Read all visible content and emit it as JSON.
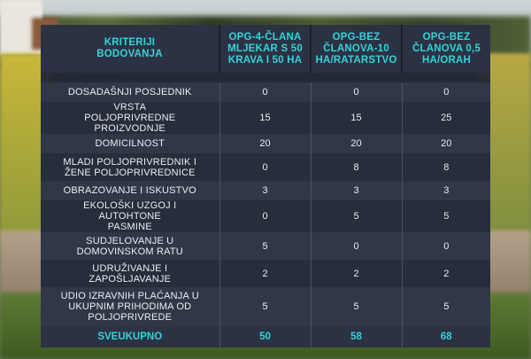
{
  "header": {
    "criteria_label": "KRITERIJI BODOVANJA",
    "columns": [
      "OPG-4-ČLANA MLJEKAR S 50 KRAVA I 50 HA",
      "OPG-BEZ ČLANOVA-10 HA/RATARSTVO",
      "OPG-BEZ ČLANOVA 0,5 HA/ORAH"
    ]
  },
  "rows": [
    {
      "criterion": "DOSADAŠNJI POSJEDNIK",
      "values": [
        "0",
        "0",
        "0"
      ]
    },
    {
      "criterion": "VRSTA POLJOPRIVREDNE PROIZVODNJE",
      "values": [
        "15",
        "15",
        "25"
      ]
    },
    {
      "criterion": "DOMICILNOST",
      "values": [
        "20",
        "20",
        "20"
      ]
    },
    {
      "criterion": "MLADI POLJOPRIVREDNIK I ŽENE POLJOPRIVREDNICE",
      "values": [
        "0",
        "8",
        "8"
      ]
    },
    {
      "criterion": "OBRAZOVANJE I ISKUSTVO",
      "values": [
        "3",
        "3",
        "3"
      ]
    },
    {
      "criterion": "EKOLOŠKI UZGOJ I AUTOHTONE PASMINE",
      "values": [
        "0",
        "5",
        "5"
      ]
    },
    {
      "criterion": "SUDJELOVANJE U DOMOVINSKOM RATU",
      "values": [
        "5",
        "0",
        "0"
      ]
    },
    {
      "criterion": "UDRUŽIVANJE I ZAPOŠLJAVANJE",
      "values": [
        "2",
        "2",
        "2"
      ]
    },
    {
      "criterion": "UDIO IZRAVNIH PLAĆANJA U UKUPNIM PRIHODIMA OD POLJOPRIVREDE",
      "values": [
        "5",
        "5",
        "5"
      ]
    }
  ],
  "total": {
    "label": "SVEUKUPNO",
    "values": [
      "50",
      "58",
      "68"
    ]
  },
  "colors": {
    "accent": "#34d3d7",
    "panel": "#1e2432",
    "text": "#e9edf1"
  }
}
